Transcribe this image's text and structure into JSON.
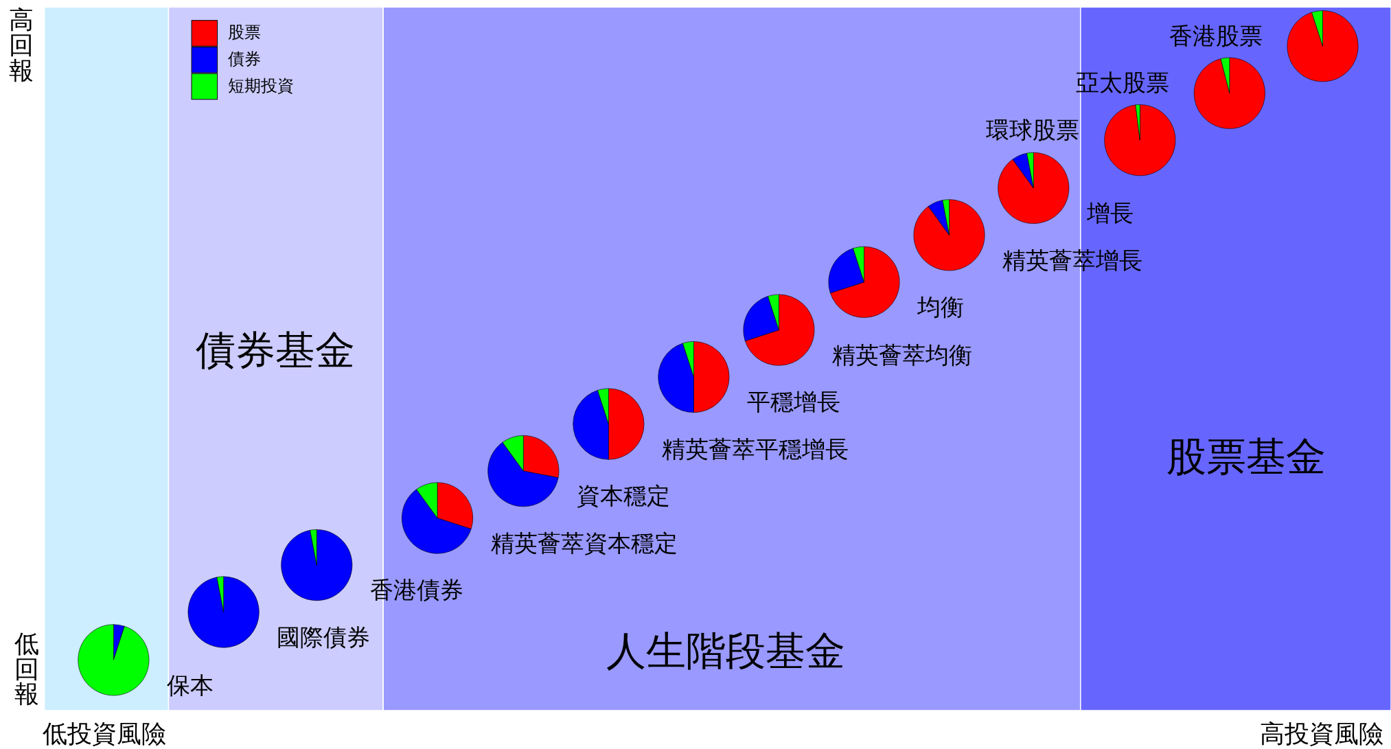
{
  "chart_data": [
    {
      "type": "other",
      "annotations": [
        "高回報",
        "低回報",
        "低投資風險",
        "高投資風險",
        "債券基金",
        "人生階段基金",
        "股票基金"
      ]
    },
    {
      "type": "pie",
      "title": "保本",
      "categories": [
        "股票",
        "債券",
        "短期投資"
      ],
      "values": [
        0,
        5,
        95
      ],
      "colors": [
        "#ff0000",
        "#0000ff",
        "#00ff00"
      ],
      "legend": "top right"
    },
    {
      "type": "pie",
      "title": "國際債券",
      "values": [
        0,
        97,
        3
      ],
      "colors": [
        "#ff0000",
        "#0000ff",
        "#00ff00"
      ]
    },
    {
      "type": "pie",
      "title": "香港債券",
      "values": [
        0,
        97,
        3
      ],
      "colors": [
        "#ff0000",
        "#0000ff",
        "#00ff00"
      ]
    },
    {
      "type": "pie",
      "title": "精英薈萃資本穩定",
      "values": [
        30,
        60,
        10
      ],
      "colors": [
        "#ff0000",
        "#0000ff",
        "#00ff00"
      ]
    },
    {
      "type": "pie",
      "title": "資本穩定",
      "values": [
        28,
        62,
        10
      ],
      "colors": [
        "#ff0000",
        "#0000ff",
        "#00ff00"
      ]
    },
    {
      "type": "pie",
      "title": "精英薈萃平穩增長",
      "values": [
        50,
        45,
        5
      ],
      "colors": [
        "#ff0000",
        "#0000ff",
        "#00ff00"
      ]
    },
    {
      "type": "pie",
      "title": "平穩增長",
      "values": [
        50,
        45,
        5
      ],
      "colors": [
        "#ff0000",
        "#0000ff",
        "#00ff00"
      ]
    },
    {
      "type": "pie",
      "title": "精英薈萃均衡",
      "values": [
        70,
        25,
        5
      ],
      "colors": [
        "#ff0000",
        "#0000ff",
        "#00ff00"
      ]
    },
    {
      "type": "pie",
      "title": "均衡",
      "values": [
        70,
        25,
        5
      ],
      "colors": [
        "#ff0000",
        "#0000ff",
        "#00ff00"
      ]
    },
    {
      "type": "pie",
      "title": "精英薈萃增長",
      "values": [
        90,
        7,
        3
      ],
      "colors": [
        "#ff0000",
        "#0000ff",
        "#00ff00"
      ]
    },
    {
      "type": "pie",
      "title": "增長",
      "values": [
        90,
        7,
        3
      ],
      "colors": [
        "#ff0000",
        "#0000ff",
        "#00ff00"
      ]
    },
    {
      "type": "pie",
      "title": "環球股票",
      "values": [
        98,
        0,
        2
      ],
      "colors": [
        "#ff0000",
        "#0000ff",
        "#00ff00"
      ]
    },
    {
      "type": "pie",
      "title": "亞太股票",
      "values": [
        96,
        0,
        4
      ],
      "colors": [
        "#ff0000",
        "#0000ff",
        "#00ff00"
      ]
    },
    {
      "type": "pie",
      "title": "香港股票",
      "values": [
        95,
        0,
        5
      ],
      "colors": [
        "#ff0000",
        "#0000ff",
        "#00ff00"
      ]
    }
  ]
}
